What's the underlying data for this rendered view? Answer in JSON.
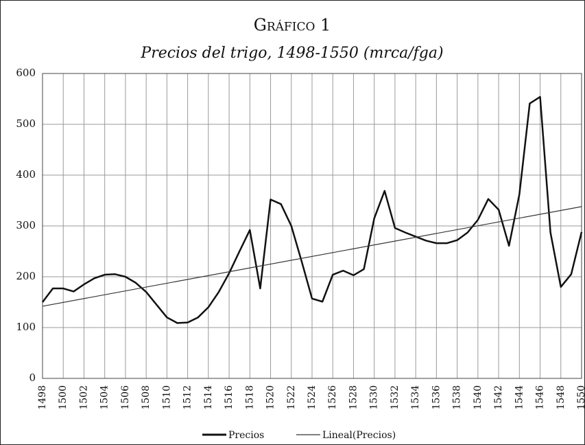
{
  "chart_data": {
    "type": "line",
    "title": "Gráfico 1",
    "subtitle": "Precios del trigo, 1498-1550 (mrca/fga)",
    "x": [
      1498,
      1499,
      1500,
      1501,
      1502,
      1503,
      1504,
      1505,
      1506,
      1507,
      1508,
      1509,
      1510,
      1511,
      1512,
      1513,
      1514,
      1515,
      1516,
      1517,
      1518,
      1519,
      1520,
      1521,
      1522,
      1523,
      1524,
      1525,
      1526,
      1527,
      1528,
      1529,
      1530,
      1531,
      1532,
      1533,
      1534,
      1535,
      1536,
      1537,
      1538,
      1539,
      1540,
      1541,
      1542,
      1543,
      1544,
      1545,
      1546,
      1547,
      1548,
      1549,
      1550
    ],
    "series": [
      {
        "name": "Precios",
        "color": "#111111",
        "values": [
          150,
          177,
          177,
          171,
          185,
          197,
          204,
          205,
          200,
          188,
          170,
          145,
          120,
          109,
          110,
          120,
          140,
          170,
          207,
          250,
          292,
          177,
          352,
          343,
          300,
          230,
          157,
          151,
          204,
          212,
          203,
          215,
          315,
          369,
          296,
          287,
          279,
          271,
          266,
          266,
          272,
          287,
          312,
          353,
          332,
          261,
          362,
          541,
          554,
          287,
          180,
          205,
          288
        ]
      },
      {
        "name": "Lineal(Precios)",
        "color": "#333333",
        "x": [
          1498,
          1550
        ],
        "values": [
          142,
          338
        ]
      }
    ],
    "xlim": [
      1498,
      1550
    ],
    "xticks": [
      1498,
      1500,
      1502,
      1504,
      1506,
      1508,
      1510,
      1512,
      1514,
      1516,
      1518,
      1520,
      1522,
      1524,
      1526,
      1528,
      1530,
      1532,
      1534,
      1536,
      1538,
      1540,
      1542,
      1544,
      1546,
      1548,
      1550
    ],
    "ylim": [
      0,
      600
    ],
    "yticks": [
      0,
      100,
      200,
      300,
      400,
      500,
      600
    ],
    "grid": true,
    "legend": "bottom"
  }
}
